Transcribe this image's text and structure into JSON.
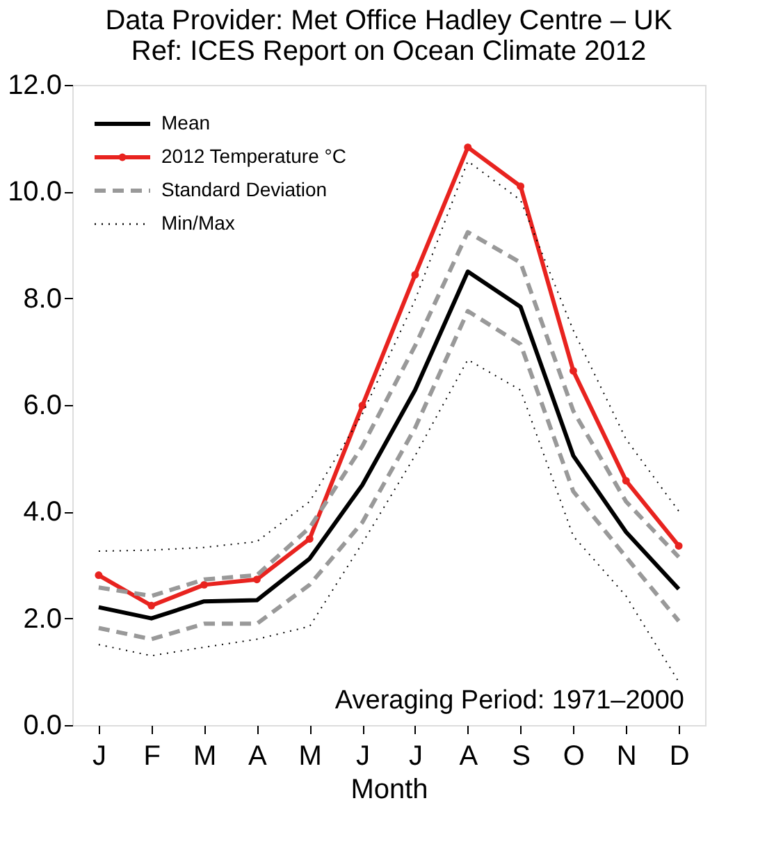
{
  "chart_data": {
    "type": "line",
    "title": "Data Provider: Met Office Hadley Centre – UK",
    "subtitle": "Ref: ICES Report on Ocean Climate 2012",
    "xlabel": "Month",
    "categories": [
      "J",
      "F",
      "M",
      "A",
      "M",
      "J",
      "J",
      "A",
      "S",
      "O",
      "N",
      "D"
    ],
    "series": [
      {
        "name": "Mean",
        "color": "#000000",
        "line_style": "solid",
        "marker": "none",
        "values": [
          2.21,
          2.0,
          2.32,
          2.34,
          3.12,
          4.5,
          6.28,
          8.5,
          7.84,
          5.05,
          3.62,
          2.55
        ]
      },
      {
        "name": "2012 Temperature °C",
        "color": "#e8231f",
        "line_style": "solid",
        "marker": "circle",
        "values": [
          2.81,
          2.24,
          2.63,
          2.73,
          3.49,
          5.99,
          8.44,
          10.83,
          10.1,
          6.64,
          4.58,
          3.36
        ]
      },
      {
        "name": "Standard Deviation",
        "color": "#999999",
        "line_style": "dashed",
        "marker": "none",
        "values": [
          2.58,
          2.42,
          2.73,
          2.81,
          3.7,
          5.23,
          7.11,
          9.24,
          8.67,
          5.89,
          4.19,
          3.15
        ]
      },
      {
        "color": "#999999",
        "line_style": "dashed",
        "marker": "none",
        "values": [
          1.82,
          1.61,
          1.9,
          1.9,
          2.63,
          3.8,
          5.57,
          7.76,
          7.14,
          4.38,
          3.15,
          1.95
        ]
      },
      {
        "name": "Min/Max",
        "color": "#000000",
        "line_style": "dotted",
        "marker": "none",
        "values": [
          3.26,
          3.28,
          3.33,
          3.44,
          4.19,
          5.83,
          7.97,
          10.57,
          9.84,
          7.4,
          5.36,
          4.01
        ]
      },
      {
        "color": "#000000",
        "line_style": "dotted",
        "marker": "none",
        "values": [
          1.51,
          1.3,
          1.46,
          1.61,
          1.85,
          3.41,
          5.05,
          6.85,
          6.28,
          3.54,
          2.42,
          0.81
        ]
      }
    ],
    "ylim": [
      0,
      12
    ],
    "yticks": [
      {
        "value": 0,
        "label": "0.0"
      },
      {
        "value": 2,
        "label": "2.0"
      },
      {
        "value": 4,
        "label": "4.0"
      },
      {
        "value": 6,
        "label": "6.0"
      },
      {
        "value": 8,
        "label": "8.0"
      },
      {
        "value": 10,
        "label": "10.0"
      },
      {
        "value": 12,
        "label": "12.0"
      }
    ],
    "grid": false,
    "legend": "top left",
    "annotations": [
      "Averaging Period: 1971–2000"
    ]
  }
}
